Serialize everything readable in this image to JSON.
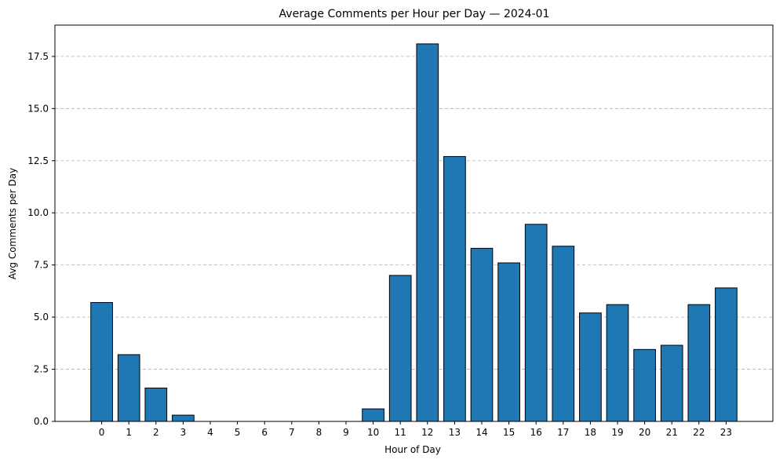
{
  "chart_data": {
    "type": "bar",
    "title": "Average Comments per Hour per Day — 2024-01",
    "xlabel": "Hour of Day",
    "ylabel": "Avg Comments per Day",
    "categories": [
      "0",
      "1",
      "2",
      "3",
      "4",
      "5",
      "6",
      "7",
      "8",
      "9",
      "10",
      "11",
      "12",
      "13",
      "14",
      "15",
      "16",
      "17",
      "18",
      "19",
      "20",
      "21",
      "22",
      "23"
    ],
    "values": [
      5.7,
      3.2,
      1.6,
      0.3,
      0,
      0,
      0,
      0,
      0,
      0,
      0.6,
      7.0,
      18.1,
      12.7,
      8.3,
      7.6,
      9.45,
      8.4,
      5.2,
      5.6,
      3.45,
      3.65,
      5.6,
      6.4
    ],
    "ylim": [
      0,
      19
    ],
    "yticks": [
      0.0,
      2.5,
      5.0,
      7.5,
      10.0,
      12.5,
      15.0,
      17.5
    ],
    "ytick_labels": [
      "0.0",
      "2.5",
      "5.0",
      "7.5",
      "10.0",
      "12.5",
      "15.0",
      "17.5"
    ],
    "grid": "y-dashed",
    "bar_color": "#1f77b4",
    "bar_edge_color": "#000000"
  }
}
